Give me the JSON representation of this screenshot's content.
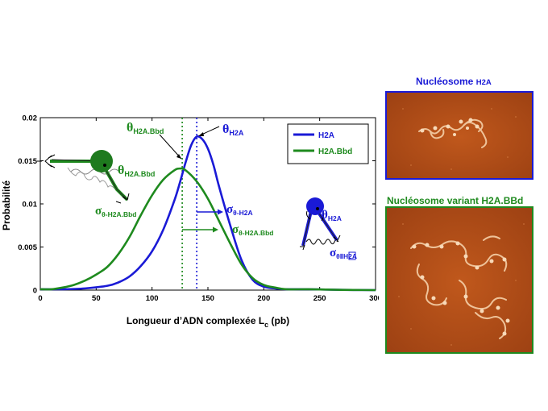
{
  "chart_data": {
    "type": "line",
    "xlabel": "Longueur d’ADN complexée L",
    "xlabel_sub": "c",
    "xlabel_unit": " (pb)",
    "ylabel": "Probabilité",
    "xlim": [
      0,
      300
    ],
    "ylim": [
      0,
      0.02
    ],
    "xticks": [
      "0",
      "50",
      "100",
      "150",
      "200",
      "250",
      "300"
    ],
    "yticks": [
      "0",
      "0.005",
      "0.01",
      "0.015",
      "0.02"
    ],
    "legend_position": "top-right",
    "series": [
      {
        "name": "H2A",
        "color": "#1a1ad6",
        "x": [
          0,
          20,
          40,
          60,
          70,
          80,
          90,
          100,
          110,
          120,
          125,
          130,
          135,
          140,
          145,
          150,
          155,
          160,
          170,
          180,
          190,
          200,
          210,
          220,
          240,
          260,
          280,
          300
        ],
        "y": [
          0.0001,
          0.0001,
          0.0002,
          0.0005,
          0.0009,
          0.0016,
          0.0028,
          0.0045,
          0.007,
          0.0104,
          0.0125,
          0.0148,
          0.0168,
          0.0178,
          0.0175,
          0.0164,
          0.0145,
          0.012,
          0.0075,
          0.0035,
          0.0012,
          0.0004,
          0.0002,
          0.0001,
          0.0001,
          5e-05,
          2e-05,
          0.0
        ]
      },
      {
        "name": "H2A.Bbd",
        "color": "#1e8a1e",
        "x": [
          0,
          10,
          20,
          30,
          40,
          50,
          60,
          70,
          80,
          90,
          100,
          110,
          120,
          125,
          130,
          140,
          150,
          160,
          170,
          180,
          190,
          200,
          210,
          220,
          240,
          260,
          280,
          300
        ],
        "y": [
          0.0001,
          0.0001,
          0.0003,
          0.0006,
          0.0011,
          0.0018,
          0.0027,
          0.0042,
          0.0062,
          0.0087,
          0.011,
          0.0128,
          0.0139,
          0.0141,
          0.0139,
          0.0126,
          0.0106,
          0.008,
          0.0054,
          0.003,
          0.0014,
          0.0006,
          0.0003,
          0.0001,
          0.0001,
          5e-05,
          2e-05,
          0.0
        ]
      }
    ],
    "reference_lines": [
      {
        "x": 127,
        "color": "#1e8a1e",
        "style": "dotted"
      },
      {
        "x": 140,
        "color": "#1a1ad6",
        "style": "dotted"
      }
    ],
    "annotations": {
      "theta_h2a_bbd": {
        "main": "θ",
        "sub": "H2A.Bbd"
      },
      "theta_h2a": {
        "main": "θ",
        "sub": "H2A"
      },
      "sigma_theta_h2a": {
        "main": "σ",
        "sub": "θ-H2A"
      },
      "sigma_theta_h2a_bbd": {
        "main": "σ",
        "sub": "θ-H2A.Bbd"
      },
      "inset_green_theta": {
        "main": "θ",
        "sub": "H2A.Bbd"
      },
      "inset_green_sigma": {
        "main": "σ",
        "sub": "θ-H2A.Bbd"
      },
      "inset_blue_theta": {
        "main": "θ",
        "sub": "H2A"
      },
      "inset_blue_sigma": {
        "main": "σ",
        "sub": "θ",
        "boxed": "Ⅱ",
        "tail": "H2A"
      }
    }
  },
  "images": {
    "top_title": "Nucléosome",
    "top_title_small": "H2A",
    "bottom_title": "Nucléosome variant H2A.BBd"
  },
  "colors": {
    "blue": "#1a1ad6",
    "green": "#1e8a1e",
    "micro_bg": "#b0501a"
  }
}
